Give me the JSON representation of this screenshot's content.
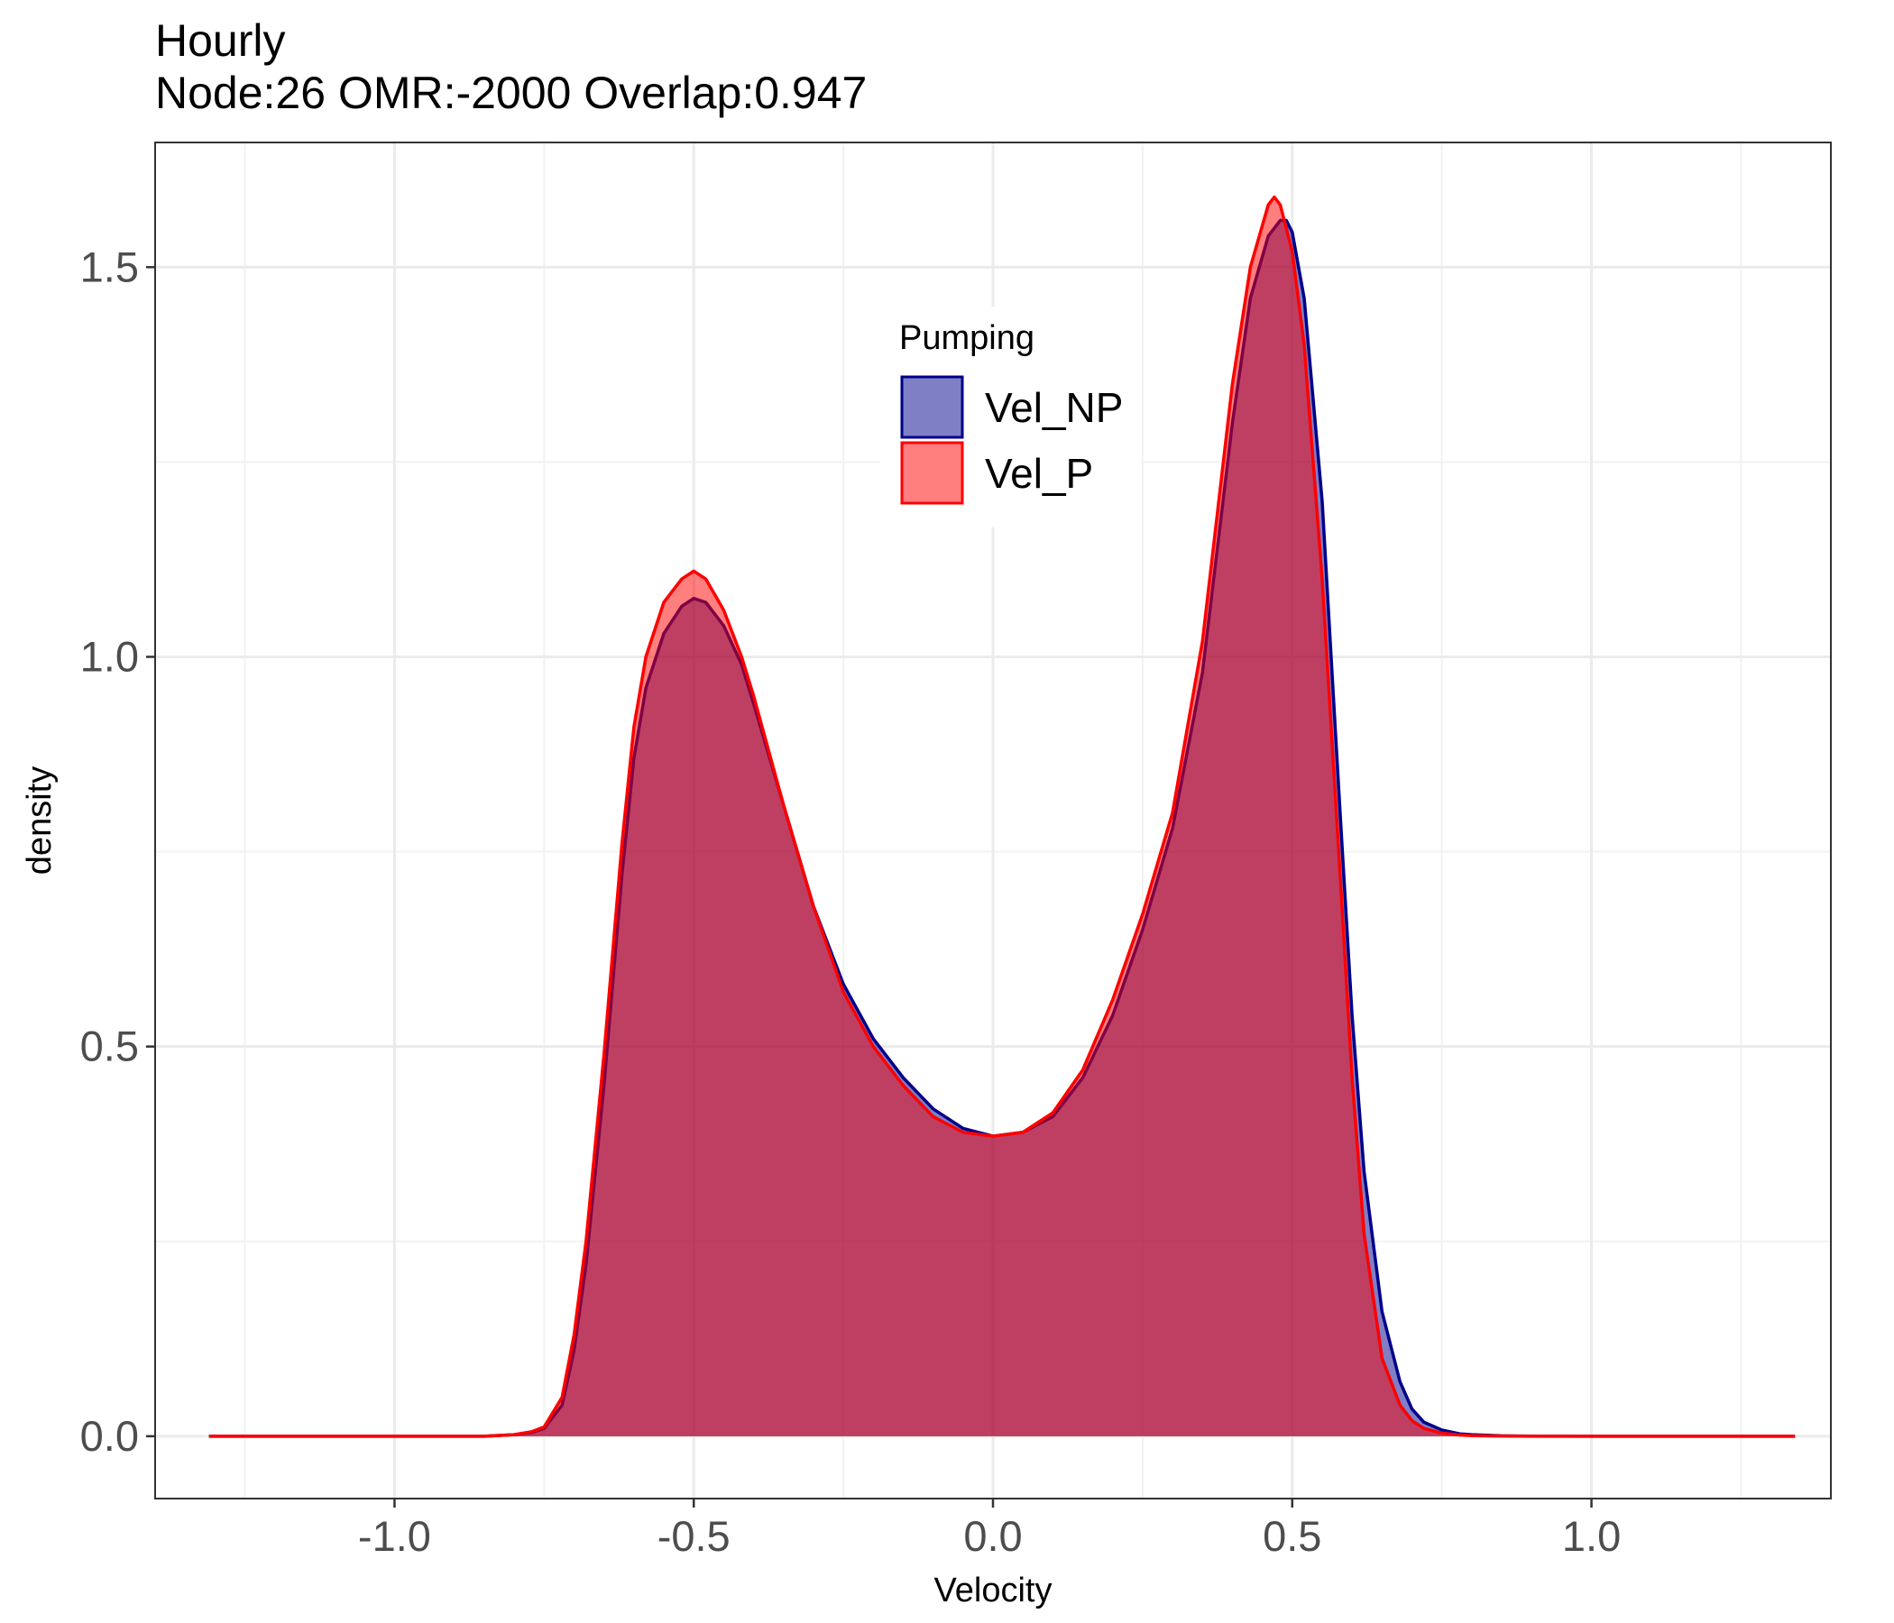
{
  "chart_data": {
    "type": "area",
    "title": "Hourly",
    "subtitle": "Node:26 OMR:-2000  Overlap:0.947",
    "xlabel": "Velocity",
    "ylabel": "density",
    "xlim": [
      -1.4,
      1.4
    ],
    "ylim": [
      -0.08,
      1.66
    ],
    "x_ticks": [
      -1.0,
      -0.5,
      0.0,
      0.5,
      1.0
    ],
    "x_tick_labels": [
      "-1.0",
      "-0.5",
      "0.0",
      "0.5",
      "1.0"
    ],
    "y_ticks": [
      0.0,
      0.5,
      1.0,
      1.5
    ],
    "y_tick_labels": [
      "0.0",
      "0.5",
      "1.0",
      "1.5"
    ],
    "grid": true,
    "legend": {
      "title": "Pumping",
      "placement": "top-center-inside"
    },
    "series": [
      {
        "name": "Vel_NP",
        "fill": "#00008B",
        "stroke": "#00008B",
        "fill_opacity": 0.5,
        "x": [
          -1.31,
          -1.0,
          -0.85,
          -0.8,
          -0.77,
          -0.75,
          -0.72,
          -0.7,
          -0.68,
          -0.65,
          -0.62,
          -0.6,
          -0.58,
          -0.55,
          -0.52,
          -0.5,
          -0.48,
          -0.45,
          -0.42,
          -0.4,
          -0.35,
          -0.3,
          -0.25,
          -0.2,
          -0.15,
          -0.1,
          -0.05,
          0.0,
          0.05,
          0.1,
          0.15,
          0.2,
          0.25,
          0.3,
          0.35,
          0.4,
          0.43,
          0.46,
          0.48,
          0.49,
          0.5,
          0.52,
          0.55,
          0.58,
          0.6,
          0.62,
          0.65,
          0.68,
          0.7,
          0.72,
          0.75,
          0.78,
          0.8,
          0.85,
          0.9,
          1.0,
          1.34
        ],
        "y": [
          0.0,
          0.0,
          0.0,
          0.002,
          0.005,
          0.01,
          0.04,
          0.11,
          0.22,
          0.45,
          0.72,
          0.87,
          0.96,
          1.03,
          1.065,
          1.075,
          1.07,
          1.04,
          0.99,
          0.94,
          0.81,
          0.68,
          0.58,
          0.51,
          0.46,
          0.42,
          0.395,
          0.385,
          0.39,
          0.41,
          0.46,
          0.54,
          0.65,
          0.78,
          0.98,
          1.3,
          1.46,
          1.54,
          1.56,
          1.56,
          1.545,
          1.46,
          1.2,
          0.8,
          0.54,
          0.34,
          0.16,
          0.07,
          0.035,
          0.018,
          0.008,
          0.003,
          0.002,
          0.0005,
          0.0001,
          0.0,
          0.0
        ]
      },
      {
        "name": "Vel_P",
        "fill": "#FF0000",
        "stroke": "#FF0000",
        "fill_opacity": 0.5,
        "x": [
          -1.31,
          -1.0,
          -0.85,
          -0.8,
          -0.77,
          -0.75,
          -0.72,
          -0.7,
          -0.68,
          -0.65,
          -0.62,
          -0.6,
          -0.58,
          -0.55,
          -0.52,
          -0.5,
          -0.48,
          -0.45,
          -0.42,
          -0.4,
          -0.35,
          -0.3,
          -0.25,
          -0.2,
          -0.15,
          -0.1,
          -0.05,
          0.0,
          0.05,
          0.1,
          0.15,
          0.2,
          0.25,
          0.3,
          0.35,
          0.4,
          0.43,
          0.46,
          0.47,
          0.48,
          0.5,
          0.52,
          0.55,
          0.58,
          0.6,
          0.62,
          0.65,
          0.68,
          0.7,
          0.72,
          0.75,
          0.78,
          0.8,
          0.85,
          0.9,
          1.0,
          1.34
        ],
        "y": [
          0.0,
          0.0,
          0.0,
          0.002,
          0.006,
          0.012,
          0.05,
          0.13,
          0.25,
          0.49,
          0.76,
          0.91,
          1.0,
          1.07,
          1.1,
          1.11,
          1.1,
          1.06,
          1.0,
          0.95,
          0.81,
          0.68,
          0.57,
          0.5,
          0.45,
          0.41,
          0.39,
          0.385,
          0.39,
          0.415,
          0.47,
          0.56,
          0.67,
          0.8,
          1.02,
          1.35,
          1.5,
          1.58,
          1.59,
          1.58,
          1.52,
          1.4,
          1.1,
          0.72,
          0.46,
          0.26,
          0.1,
          0.04,
          0.02,
          0.01,
          0.004,
          0.0015,
          0.0008,
          0.0002,
          0.0,
          0.0,
          0.0
        ]
      }
    ]
  }
}
